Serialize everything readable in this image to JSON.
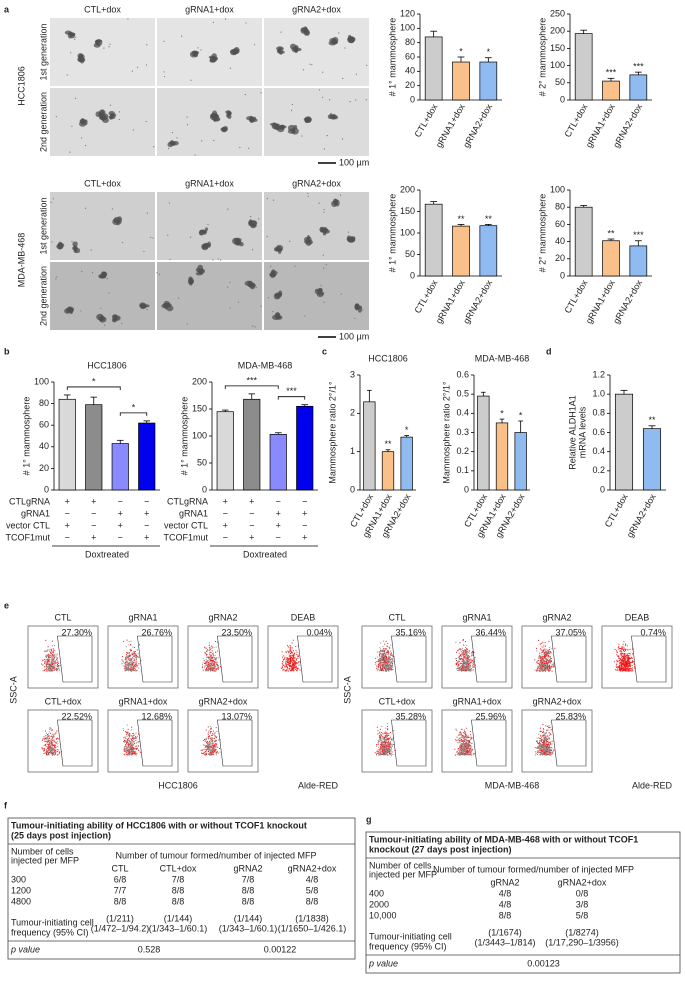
{
  "panel_labels": [
    "a",
    "b",
    "c",
    "d",
    "e",
    "f",
    "g"
  ],
  "micrographs": [
    {
      "cell_line": "HCC1806",
      "columns": [
        "CTL+dox",
        "gRNA1+dox",
        "gRNA2+dox"
      ],
      "rows": [
        "1st generation",
        "2nd generation"
      ],
      "scale_bar": "100 µm"
    },
    {
      "cell_line": "MDA-MB-468",
      "columns": [
        "CTL+dox",
        "gRNA1+dox",
        "gRNA2+dox"
      ],
      "rows": [
        "1st generation",
        "2nd generation"
      ],
      "scale_bar": "100 µm"
    }
  ],
  "chart_data": [
    {
      "type": "bar",
      "ylabel": "# 1° mammosphere",
      "categories": [
        "CTL+dox",
        "gRNA1+dox",
        "gRNA2+dox"
      ],
      "values": [
        88,
        53,
        53
      ],
      "errors": [
        8,
        7,
        6
      ],
      "annotations": [
        null,
        "*",
        "*"
      ],
      "colors": [
        "#cccccc",
        "#f9c08a",
        "#8fbbf0"
      ],
      "ylim": [
        0,
        120
      ],
      "yticks": [
        0,
        20,
        40,
        60,
        80,
        100,
        120
      ]
    },
    {
      "type": "bar",
      "ylabel": "# 2° mammosphere",
      "categories": [
        "CTL+dox",
        "gRNA1+dox",
        "gRNA2+dox"
      ],
      "values": [
        193,
        55,
        73
      ],
      "errors": [
        10,
        8,
        8
      ],
      "annotations": [
        null,
        "***",
        "***"
      ],
      "colors": [
        "#cccccc",
        "#f9c08a",
        "#8fbbf0"
      ],
      "ylim": [
        0,
        250
      ],
      "yticks": [
        0,
        50,
        100,
        150,
        200,
        250
      ]
    },
    {
      "type": "bar",
      "ylabel": "# 1° mammosphere",
      "categories": [
        "CTL+dox",
        "gRNA1+dox",
        "gRNA2+dox"
      ],
      "values": [
        167,
        116,
        117
      ],
      "errors": [
        6,
        4,
        3
      ],
      "annotations": [
        null,
        "**",
        "**"
      ],
      "colors": [
        "#cccccc",
        "#f9c08a",
        "#8fbbf0"
      ],
      "ylim": [
        0,
        200
      ],
      "yticks": [
        0,
        50,
        100,
        150,
        200
      ]
    },
    {
      "type": "bar",
      "ylabel": "# 2° mammosphere",
      "categories": [
        "CTL+dox",
        "gRNA1+dox",
        "gRNA2+dox"
      ],
      "values": [
        80,
        41,
        35
      ],
      "errors": [
        2,
        2,
        6
      ],
      "annotations": [
        null,
        "**",
        "***"
      ],
      "colors": [
        "#cccccc",
        "#f9c08a",
        "#8fbbf0"
      ],
      "ylim": [
        0,
        100
      ],
      "yticks": [
        0,
        20,
        40,
        60,
        80,
        100
      ]
    },
    {
      "type": "bar",
      "title": "HCC1806",
      "ylabel": "# 1° mammosphere",
      "values": [
        84,
        79,
        43,
        62
      ],
      "errors": [
        4,
        7,
        3,
        2
      ],
      "colors": [
        "#d9d9d9",
        "#8c8c8c",
        "#8a8aff",
        "#0000ee"
      ],
      "ylim": [
        0,
        100
      ],
      "yticks": [
        0,
        20,
        40,
        60,
        80,
        100
      ],
      "brackets": [
        {
          "from": 0,
          "to": 2,
          "label": "*"
        },
        {
          "from": 2,
          "to": 3,
          "label": "*"
        }
      ],
      "conditions": {
        "rows": [
          "CTLgRNA",
          "gRNA1",
          "vector CTL",
          "TCOF1mut"
        ],
        "signs": [
          [
            "+",
            "+",
            "−",
            "−"
          ],
          [
            "−",
            "−",
            "+",
            "+"
          ],
          [
            "+",
            "−",
            "+",
            "−"
          ],
          [
            "−",
            "+",
            "−",
            "+"
          ]
        ]
      },
      "group_label": "Doxtreated"
    },
    {
      "type": "bar",
      "title": "MDA-MB-468",
      "ylabel": "# 1° mammosphere",
      "values": [
        145,
        168,
        103,
        155
      ],
      "errors": [
        3,
        10,
        3,
        3
      ],
      "colors": [
        "#d9d9d9",
        "#8c8c8c",
        "#8a8aff",
        "#0000ee"
      ],
      "ylim": [
        0,
        200
      ],
      "yticks": [
        0,
        50,
        100,
        150,
        200
      ],
      "brackets": [
        {
          "from": 0,
          "to": 2,
          "label": "***"
        },
        {
          "from": 2,
          "to": 3,
          "label": "***"
        }
      ],
      "conditions": {
        "rows": [
          "CTLgRNA",
          "gRNA1",
          "vector CTL",
          "TCOF1mut"
        ],
        "signs": [
          [
            "+",
            "+",
            "−",
            "−"
          ],
          [
            "−",
            "−",
            "+",
            "+"
          ],
          [
            "+",
            "−",
            "+",
            "−"
          ],
          [
            "−",
            "+",
            "−",
            "+"
          ]
        ]
      },
      "group_label": "Doxtreated"
    },
    {
      "type": "bar",
      "title": "HCC1806",
      "ylabel": "Mammosphere ratio 2°/1°",
      "categories": [
        "CTL+dox",
        "gRNA1+dox",
        "gRNA2+dox"
      ],
      "values": [
        2.3,
        1.0,
        1.38
      ],
      "errors": [
        0.3,
        0.05,
        0.04
      ],
      "annotations": [
        null,
        "**",
        "*"
      ],
      "colors": [
        "#cccccc",
        "#f9c08a",
        "#8fbbf0"
      ],
      "ylim": [
        0,
        3
      ],
      "yticks": [
        0,
        1,
        2,
        3
      ]
    },
    {
      "type": "bar",
      "title": "MDA-MB-468",
      "ylabel": "Mammosphere ratio 2°/1°",
      "categories": [
        "CTL+dox",
        "gRNA1+dox",
        "gRNA2+dox"
      ],
      "values": [
        0.49,
        0.35,
        0.3
      ],
      "errors": [
        0.02,
        0.02,
        0.06
      ],
      "annotations": [
        null,
        "*",
        "*"
      ],
      "colors": [
        "#cccccc",
        "#f9c08a",
        "#8fbbf0"
      ],
      "ylim": [
        0,
        0.6
      ],
      "yticks": [
        0,
        0.1,
        0.2,
        0.3,
        0.4,
        0.5,
        0.6
      ]
    },
    {
      "type": "bar",
      "ylabel": [
        "Relative ALDH1A1",
        "mRNA levels"
      ],
      "categories": [
        "CTL+dox",
        "gRNA2+dox"
      ],
      "values": [
        1.0,
        0.64
      ],
      "errors": [
        0.04,
        0.03
      ],
      "annotations": [
        null,
        "**"
      ],
      "colors": [
        "#cccccc",
        "#8fbbf0"
      ],
      "ylim": [
        0,
        1.2
      ],
      "yticks": [
        0,
        0.2,
        0.4,
        0.6,
        0.8,
        {
          "value": 1,
          "label": "1.0"
        },
        1.2
      ]
    }
  ],
  "flow_panels": [
    {
      "cell_line": "HCC1806",
      "y_label": "SSC-A",
      "x_label": "Alde-RED",
      "plots": [
        {
          "label": "CTL",
          "percent": "27.30%"
        },
        {
          "label": "gRNA1",
          "percent": "26.76%"
        },
        {
          "label": "gRNA2",
          "percent": "23.50%"
        },
        {
          "label": "DEAB",
          "percent": "0.04%"
        },
        {
          "label": "CTL+dox",
          "percent": "22.52%"
        },
        {
          "label": "gRNA1+dox",
          "percent": "12.68%"
        },
        {
          "label": "gRNA2+dox",
          "percent": "13.07%"
        }
      ]
    },
    {
      "cell_line": "MDA-MB-468",
      "y_label": "SSC-A",
      "x_label": "Alde-RED",
      "plots": [
        {
          "label": "CTL",
          "percent": "35.16%"
        },
        {
          "label": "gRNA1",
          "percent": "36.44%"
        },
        {
          "label": "gRNA2",
          "percent": "37.05%"
        },
        {
          "label": "DEAB",
          "percent": "0.74%"
        },
        {
          "label": "CTL+dox",
          "percent": "35.28%"
        },
        {
          "label": "gRNA1+dox",
          "percent": "25.96%"
        },
        {
          "label": "gRNA2+dox",
          "percent": "25.83%"
        }
      ]
    }
  ],
  "tables": [
    {
      "title": [
        "Tumour-initiating ability of HCC1806 with or without TCOF1 knockout",
        "(25 days post injection)"
      ],
      "row_header": [
        "Number of cells",
        "injected per MFP"
      ],
      "span_header": "Number of tumour formed/number of injected MFP",
      "columns": [
        "CTL",
        "CTL+dox",
        "gRNA2",
        "gRNA2+dox"
      ],
      "rows": [
        [
          "300",
          "6/8",
          "7/8",
          "7/8",
          "4/8"
        ],
        [
          "1200",
          "7/7",
          "8/8",
          "8/8",
          "5/8"
        ],
        [
          "4800",
          "8/8",
          "8/8",
          "8/8",
          "8/8"
        ]
      ],
      "frequency_label": [
        "Tumour-initiating cell",
        "frequency (95% CI)"
      ],
      "frequency": [
        [
          "(1/211)",
          "(1/472–1/94.2)"
        ],
        [
          "(1/144)",
          "(1/343–1/60.1)"
        ],
        [
          "(1/144)",
          "(1/343–1/60.1)"
        ],
        [
          "(1/1838)",
          "(1/1650–1/426.1)"
        ]
      ],
      "p_label": "p value",
      "p_values": [
        "0.528",
        "0.00122"
      ]
    },
    {
      "title": [
        "Tumour-initiating ability of MDA-MB-468 with or without TCOF1",
        "knockout (27 days post injection)"
      ],
      "row_header": [
        "Number of cells",
        "injected per MFP"
      ],
      "span_header": "Number of tumour formed/number of injected MFP",
      "columns": [
        "gRNA2",
        "gRNA2+dox"
      ],
      "rows": [
        [
          "400",
          "4/8",
          "0/8"
        ],
        [
          "2000",
          "4/8",
          "3/8"
        ],
        [
          "10,000",
          "8/8",
          "5/8"
        ]
      ],
      "frequency_label": [
        "Tumour-initiating cell",
        "frequency (95% CI)"
      ],
      "frequency": [
        [
          "(1/1674)",
          "(1/3443–1/814)"
        ],
        [
          "(1/8274)",
          "(1/17,290–1/3956)"
        ]
      ],
      "p_label": "p value",
      "p_values": [
        "0.00123"
      ]
    }
  ]
}
